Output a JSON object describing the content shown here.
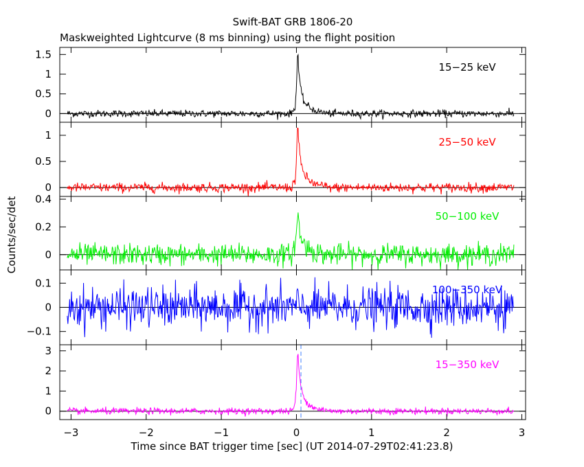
{
  "chart_data": {
    "type": "line",
    "title": "Swift-BAT GRB 1806-20",
    "subtitle": "Maskweighted Lightcurve (8 ms binning) using the flight position",
    "xlabel": "Time since BAT trigger time [sec] (UT 2014-07-29T02:41:23.8)",
    "ylabel": "Counts/sec/det",
    "xlim": [
      -3.15,
      3.05
    ],
    "x_ticks": [
      "−3",
      "−2",
      "−1",
      "0",
      "1",
      "2",
      "3"
    ],
    "x_tick_values": [
      -3,
      -2,
      -1,
      0,
      1,
      2,
      3
    ],
    "bin_width_s": 0.008,
    "data_range_x": [
      -3.05,
      2.9
    ],
    "panels": [
      {
        "name": "15−25 keV",
        "color": "#000000",
        "ylim": [
          -0.22,
          1.68
        ],
        "y_ticks": [
          "0",
          "0.5",
          "1",
          "1.5"
        ],
        "y_tick_values": [
          0,
          0.5,
          1,
          1.5
        ],
        "series": [
          {
            "name": "15−25 keV",
            "noise_sigma": 0.045,
            "x": [
              -0.06,
              -0.02,
              0.0,
              0.01,
              0.02,
              0.03,
              0.04,
              0.05,
              0.07,
              0.09,
              0.12,
              0.16,
              0.2,
              0.25,
              0.3,
              0.4
            ],
            "y": [
              0.03,
              0.15,
              0.6,
              1.35,
              1.6,
              1.1,
              0.9,
              0.7,
              0.5,
              0.35,
              0.25,
              0.18,
              0.12,
              0.08,
              0.05,
              0.02
            ]
          }
        ]
      },
      {
        "name": "25−50 keV",
        "color": "#ff0000",
        "ylim": [
          -0.17,
          1.25
        ],
        "y_ticks": [
          "0",
          "0.5",
          "1"
        ],
        "y_tick_values": [
          0,
          0.5,
          1
        ],
        "series": [
          {
            "name": "25−50 keV",
            "noise_sigma": 0.045,
            "x": [
              -0.06,
              -0.02,
              0.0,
              0.01,
              0.02,
              0.03,
              0.04,
              0.05,
              0.07,
              0.09,
              0.12,
              0.16,
              0.2,
              0.25,
              0.3,
              0.4
            ],
            "y": [
              0.03,
              0.12,
              0.5,
              1.05,
              1.2,
              0.85,
              0.7,
              0.55,
              0.42,
              0.3,
              0.22,
              0.15,
              0.1,
              0.07,
              0.04,
              0.02
            ]
          }
        ]
      },
      {
        "name": "50−100 keV",
        "color": "#00ee00",
        "ylim": [
          -0.11,
          0.42
        ],
        "y_ticks": [
          "0",
          "0.2",
          "0.4"
        ],
        "y_tick_values": [
          0,
          0.2,
          0.4
        ],
        "series": [
          {
            "name": "50−100 keV",
            "noise_sigma": 0.038,
            "x": [
              -0.06,
              -0.02,
              0.0,
              0.01,
              0.02,
              0.03,
              0.04,
              0.05,
              0.07,
              0.09,
              0.12,
              0.16,
              0.2,
              0.25,
              0.3,
              0.4
            ],
            "y": [
              0.02,
              0.06,
              0.14,
              0.25,
              0.32,
              0.22,
              0.18,
              0.15,
              0.12,
              0.08,
              0.06,
              0.05,
              0.03,
              0.02,
              0.01,
              0.0
            ]
          }
        ]
      },
      {
        "name": "100−350 keV",
        "color": "#0000ff",
        "ylim": [
          -0.155,
          0.155
        ],
        "y_ticks": [
          "−0.1",
          "0",
          "0.1"
        ],
        "y_tick_values": [
          -0.1,
          0,
          0.1
        ],
        "series": [
          {
            "name": "100−350 keV",
            "noise_sigma": 0.042,
            "x": [
              -3.05,
              2.9
            ],
            "y": [
              0.0,
              0.0
            ]
          }
        ]
      },
      {
        "name": "15−350 keV",
        "color": "#ff00ff",
        "ylim": [
          -0.42,
          3.3
        ],
        "y_ticks": [
          "0",
          "1",
          "2",
          "3"
        ],
        "y_tick_values": [
          0,
          1,
          2,
          3
        ],
        "series": [
          {
            "name": "15−350 keV",
            "noise_sigma": 0.08,
            "x": [
              -0.06,
              -0.02,
              0.0,
              0.01,
              0.02,
              0.03,
              0.04,
              0.05,
              0.07,
              0.09,
              0.12,
              0.16,
              0.2,
              0.25,
              0.3,
              0.4
            ],
            "y": [
              0.05,
              0.3,
              1.2,
              2.6,
              3.1,
              2.2,
              1.8,
              1.4,
              1.05,
              0.75,
              0.55,
              0.38,
              0.25,
              0.17,
              0.1,
              0.04
            ]
          }
        ]
      }
    ],
    "grid": false,
    "legend": "none",
    "markers": {
      "dashed_vertical_x": 0.06,
      "dashed_color": "#4080ff"
    }
  }
}
